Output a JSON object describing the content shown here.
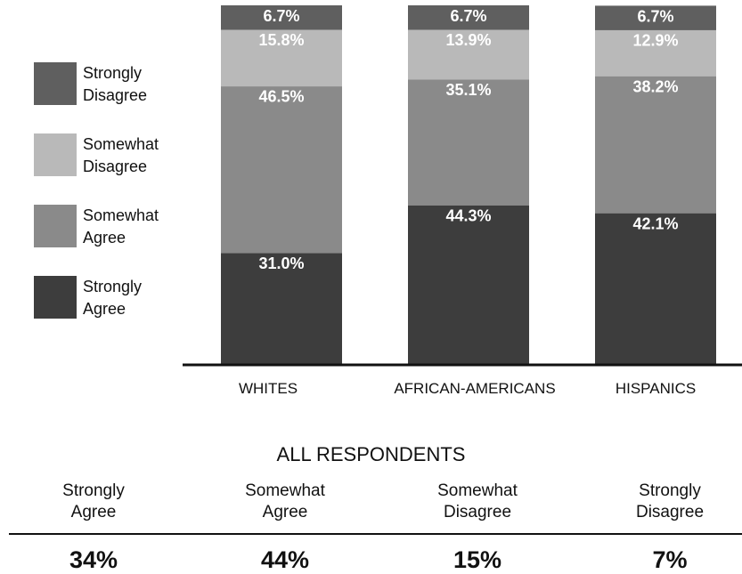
{
  "chart_data": {
    "type": "bar",
    "stacked": true,
    "categories": [
      "WHITES",
      "AFRICAN-AMERICANS",
      "HISPANICS"
    ],
    "series": [
      {
        "name": "Strongly Agree",
        "values": [
          31.0,
          44.3,
          42.1
        ],
        "labels": [
          "31.0%",
          "44.3%",
          "42.1%"
        ],
        "color": "#3d3d3d"
      },
      {
        "name": "Somewhat Agree",
        "values": [
          46.5,
          35.1,
          38.2
        ],
        "labels": [
          "46.5%",
          "35.1%",
          "38.2%"
        ],
        "color": "#8a8a8a"
      },
      {
        "name": "Somewhat Disagree",
        "values": [
          15.8,
          13.9,
          12.9
        ],
        "labels": [
          "15.8%",
          "13.9%",
          "12.9%"
        ],
        "color": "#b9b9b9"
      },
      {
        "name": "Strongly Disagree",
        "values": [
          6.7,
          6.7,
          6.7
        ],
        "labels": [
          "6.7%",
          "6.7%",
          "6.7%"
        ],
        "color": "#5f5f5f"
      }
    ],
    "ylim": [
      0,
      100
    ],
    "grid": false,
    "legend_position": "left"
  },
  "legend": [
    {
      "line1": "Strongly",
      "line2": "Disagree",
      "color": "#5f5f5f"
    },
    {
      "line1": "Somewhat",
      "line2": "Disagree",
      "color": "#b9b9b9"
    },
    {
      "line1": "Somewhat",
      "line2": "Agree",
      "color": "#8a8a8a"
    },
    {
      "line1": "Strongly",
      "line2": "Agree",
      "color": "#3d3d3d"
    }
  ],
  "summary": {
    "title": "ALL RESPONDENTS",
    "columns": [
      {
        "line1": "Strongly",
        "line2": "Agree",
        "value": "34%"
      },
      {
        "line1": "Somewhat",
        "line2": "Agree",
        "value": "44%"
      },
      {
        "line1": "Somewhat",
        "line2": "Disagree",
        "value": "15%"
      },
      {
        "line1": "Strongly",
        "line2": "Disagree",
        "value": "7%"
      }
    ]
  }
}
